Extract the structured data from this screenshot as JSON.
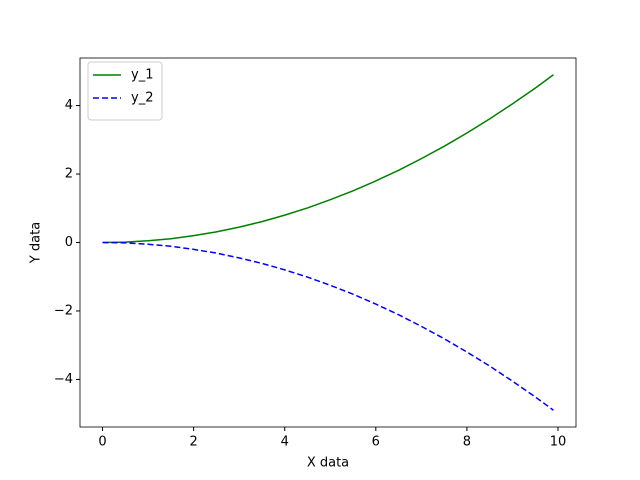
{
  "chart_data": {
    "type": "line",
    "x": [
      0,
      0.5,
      1,
      1.5,
      2,
      2.5,
      3,
      3.5,
      4,
      4.5,
      5,
      5.5,
      6,
      6.5,
      7,
      7.5,
      8,
      8.5,
      9,
      9.5,
      9.9
    ],
    "series": [
      {
        "name": "y_1",
        "color": "green",
        "linestyle": "solid",
        "values": [
          0,
          0.01,
          0.05,
          0.11,
          0.2,
          0.31,
          0.45,
          0.61,
          0.8,
          1.01,
          1.25,
          1.51,
          1.8,
          2.11,
          2.45,
          2.81,
          3.2,
          3.61,
          4.05,
          4.51,
          4.9
        ]
      },
      {
        "name": "y_2",
        "color": "blue",
        "linestyle": "dashed",
        "values": [
          0,
          -0.01,
          -0.05,
          -0.11,
          -0.2,
          -0.31,
          -0.45,
          -0.61,
          -0.8,
          -1.01,
          -1.25,
          -1.51,
          -1.8,
          -2.11,
          -2.45,
          -2.81,
          -3.2,
          -3.61,
          -4.05,
          -4.51,
          -4.9
        ]
      }
    ],
    "xlabel": "X data",
    "ylabel": "Y data",
    "xlim": [
      -0.495,
      10.395
    ],
    "ylim": [
      -5.39,
      5.39
    ],
    "xticks": [
      0,
      2,
      4,
      6,
      8,
      10
    ],
    "yticks": [
      {
        "value": -4,
        "label": "−4"
      },
      {
        "value": -2,
        "label": "−2"
      },
      0,
      2,
      4
    ],
    "legend": "upper left",
    "grid": false
  }
}
